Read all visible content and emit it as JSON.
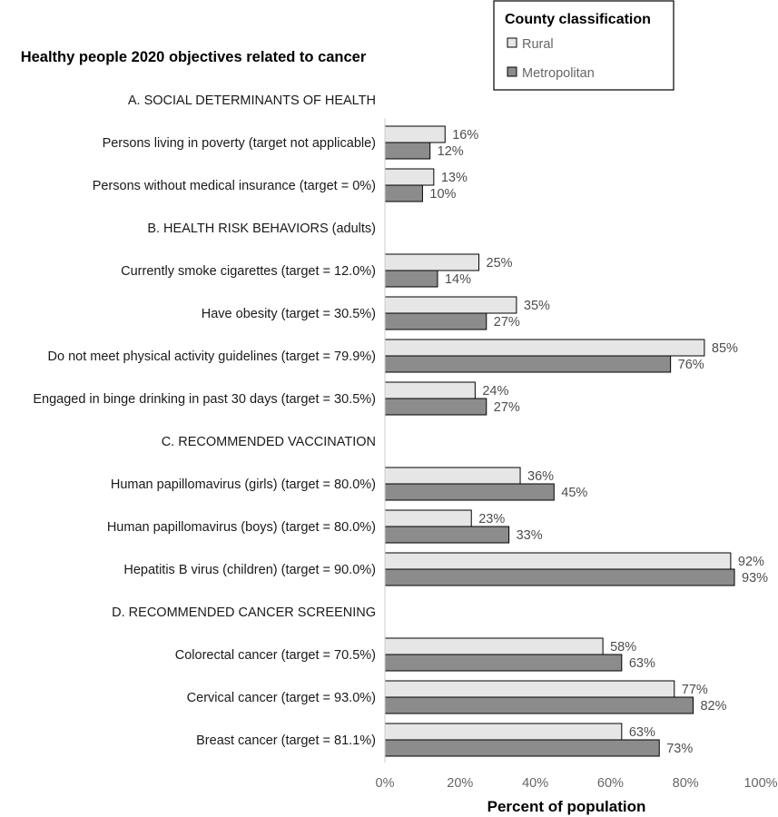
{
  "chart_data": {
    "type": "bar",
    "orientation": "horizontal",
    "title": "Healthy people 2020 objectives related to cancer",
    "xlabel": "Percent of population",
    "xlim": [
      0,
      100
    ],
    "xticks": [
      "0%",
      "20%",
      "40%",
      "60%",
      "80%",
      "100%"
    ],
    "legend": {
      "title": "County classification",
      "position": "top-right",
      "entries": [
        {
          "name": "Rural",
          "color": "#e6e6e6"
        },
        {
          "name": "Metropolitan",
          "color": "#8c8c8c"
        }
      ]
    },
    "rows": [
      {
        "kind": "section",
        "label": "A. SOCIAL DETERMINANTS OF HEALTH"
      },
      {
        "kind": "category",
        "label": "Persons living in poverty (target not applicable)",
        "rural": 16,
        "metro": 12
      },
      {
        "kind": "category",
        "label": "Persons without medical insurance (target = 0%)",
        "rural": 13,
        "metro": 10
      },
      {
        "kind": "section",
        "label": "B. HEALTH RISK BEHAVIORS (adults)"
      },
      {
        "kind": "category",
        "label": "Currently smoke cigarettes (target = 12.0%)",
        "rural": 25,
        "metro": 14
      },
      {
        "kind": "category",
        "label": "Have obesity (target = 30.5%)",
        "rural": 35,
        "metro": 27
      },
      {
        "kind": "category",
        "label": "Do not meet physical activity guidelines (target = 79.9%)",
        "rural": 85,
        "metro": 76
      },
      {
        "kind": "category",
        "label": "Engaged in binge drinking in past 30 days (target = 30.5%)",
        "rural": 24,
        "metro": 27
      },
      {
        "kind": "section",
        "label": "C. RECOMMENDED VACCINATION"
      },
      {
        "kind": "category",
        "label": "Human papillomavirus (girls) (target = 80.0%)",
        "rural": 36,
        "metro": 45
      },
      {
        "kind": "category",
        "label": "Human papillomavirus (boys) (target = 80.0%)",
        "rural": 23,
        "metro": 33
      },
      {
        "kind": "category",
        "label": "Hepatitis B virus (children) (target = 90.0%)",
        "rural": 92,
        "metro": 93
      },
      {
        "kind": "section",
        "label": "D. RECOMMENDED CANCER SCREENING"
      },
      {
        "kind": "category",
        "label": "Colorectal cancer (target = 70.5%)",
        "rural": 58,
        "metro": 63
      },
      {
        "kind": "category",
        "label": "Cervical cancer (target = 93.0%)",
        "rural": 77,
        "metro": 82
      },
      {
        "kind": "category",
        "label": "Breast cancer (target = 81.1%)",
        "rural": 63,
        "metro": 73
      }
    ],
    "value_suffix": "%"
  }
}
